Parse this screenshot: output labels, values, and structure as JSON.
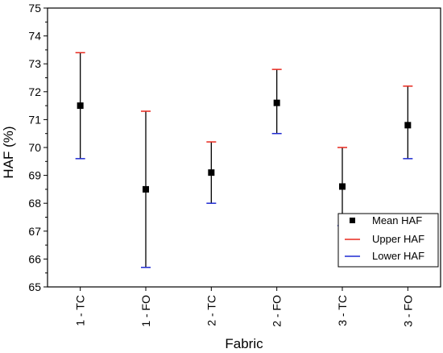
{
  "chart_data": {
    "type": "scatter",
    "title": "",
    "xlabel": "Fabric",
    "ylabel": "HAF (%)",
    "ylim": [
      65,
      75
    ],
    "yticks": [
      "65",
      "66",
      "67",
      "68",
      "69",
      "70",
      "71",
      "72",
      "73",
      "74",
      "75"
    ],
    "categories": [
      "1 - TC",
      "1 - FO",
      "2 - TC",
      "2 - FO",
      "3 - TC",
      "3 - FO"
    ],
    "series": [
      {
        "name": "Mean HAF",
        "values": [
          71.5,
          68.5,
          69.1,
          71.6,
          68.6,
          70.8
        ],
        "color": "#000000"
      },
      {
        "name": "Upper HAF",
        "values": [
          73.4,
          71.3,
          70.2,
          72.8,
          70.0,
          72.2
        ],
        "color": "#e8281e"
      },
      {
        "name": "Lower HAF",
        "values": [
          69.6,
          65.7,
          68.0,
          70.5,
          67.2,
          69.6
        ],
        "color": "#1e2ad2"
      }
    ],
    "legend_position": "bottom-right",
    "grid": false
  }
}
